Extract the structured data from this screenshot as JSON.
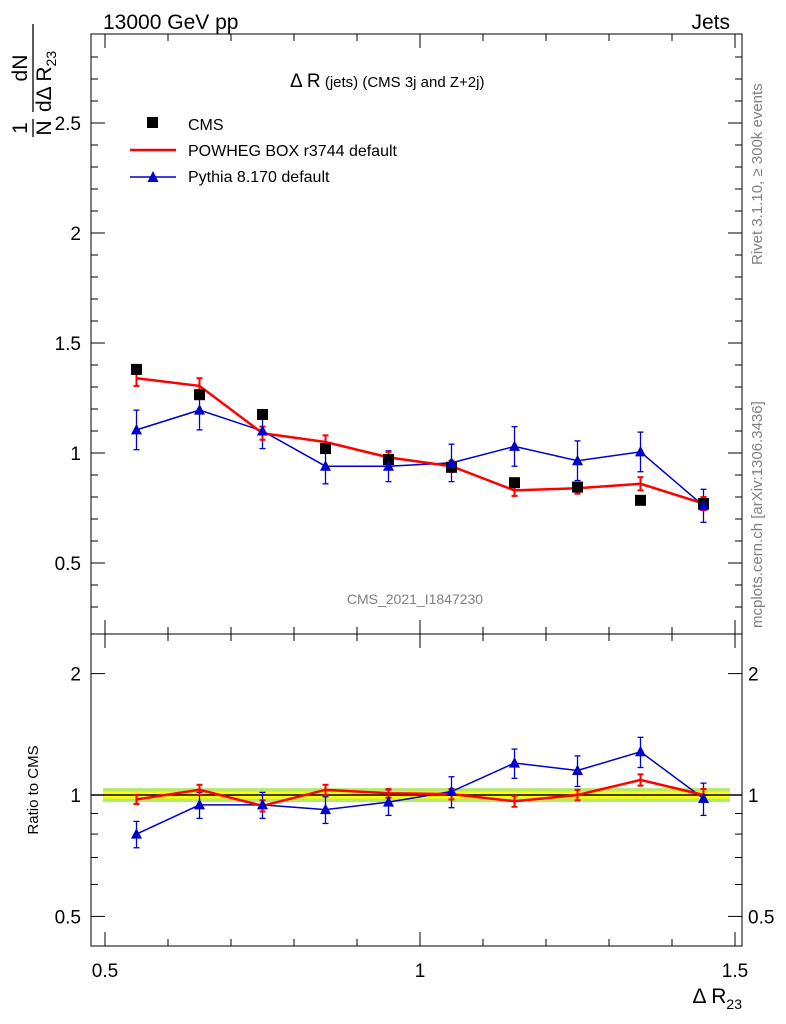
{
  "header": {
    "left": "13000 GeV pp",
    "right": "Jets"
  },
  "plot_title": {
    "main": "Δ R",
    "small": " (jets) ",
    "rest": "(CMS 3j and Z+2j)"
  },
  "side_text": {
    "rivet": "Rivet 3.1.10, ≥ 300k events",
    "mcplots": "mcplots.cern.ch [arXiv:1306.3436]"
  },
  "watermark": "CMS_2021_I1847230",
  "y_label": {
    "frac_num": "1",
    "frac_den": "N",
    "d_num": "dN",
    "d_den": "dΔ R",
    "d_den_sub": "23"
  },
  "x_label": {
    "main": "Δ R",
    "sub": "23"
  },
  "ratio_label": "Ratio to CMS",
  "legend": [
    {
      "name": "CMS",
      "color": "#000000",
      "marker": "square"
    },
    {
      "name": "POWHEG BOX r3744 default",
      "color": "#ff0000",
      "marker": "line"
    },
    {
      "name": "Pythia 8.170 default",
      "color": "#0000cc",
      "marker": "triangle"
    }
  ],
  "chart_data": [
    {
      "type": "scatter",
      "panel": "main",
      "title": "Δ R (jets) (CMS 3j and Z+2j)",
      "xlim": [
        0.5,
        1.5
      ],
      "ylim": [
        0.2,
        2.9
      ],
      "y_ticks": [
        "0.5",
        "1",
        "1.5",
        "2",
        "2.5"
      ],
      "x": [
        0.55,
        0.65,
        0.75,
        0.85,
        0.95,
        1.05,
        1.15,
        1.25,
        1.35,
        1.45
      ],
      "series": [
        {
          "name": "CMS",
          "color": "#000000",
          "values": [
            1.38,
            1.265,
            1.175,
            1.02,
            0.97,
            0.935,
            0.865,
            0.845,
            0.785,
            0.77
          ],
          "errors": [
            0.015,
            0.015,
            0.015,
            0.015,
            0.01,
            0.01,
            0.01,
            0.015,
            0.01,
            0.01
          ]
        },
        {
          "name": "POWHEG BOX r3744 default",
          "color": "#ff0000",
          "values": [
            1.34,
            1.305,
            1.09,
            1.05,
            0.98,
            0.94,
            0.83,
            0.84,
            0.86,
            0.77
          ],
          "errors": [
            0.035,
            0.035,
            0.03,
            0.03,
            0.025,
            0.025,
            0.025,
            0.025,
            0.03,
            0.03
          ]
        },
        {
          "name": "Pythia 8.170 default",
          "color": "#0000cc",
          "values": [
            1.105,
            1.195,
            1.1,
            0.94,
            0.94,
            0.955,
            1.03,
            0.965,
            1.005,
            0.76
          ],
          "errors": [
            0.09,
            0.09,
            0.08,
            0.08,
            0.07,
            0.085,
            0.09,
            0.09,
            0.09,
            0.075
          ]
        }
      ]
    },
    {
      "type": "scatter",
      "panel": "ratio",
      "ylabel": "Ratio to CMS",
      "xlabel": "Δ R23",
      "xlim": [
        0.5,
        1.5
      ],
      "ylim": [
        0.4,
        2.4
      ],
      "log_y": true,
      "x_ticks": [
        "0.5",
        "1",
        "1.5"
      ],
      "y_ticks": [
        "0.5",
        "1",
        "2"
      ],
      "x": [
        0.55,
        0.65,
        0.75,
        0.85,
        0.95,
        1.05,
        1.15,
        1.25,
        1.35,
        1.45
      ],
      "band": {
        "inner": 0.02,
        "outer": 0.04,
        "inner_color": "#ffff00",
        "outer_color": "#b8e86a"
      },
      "series": [
        {
          "name": "POWHEG BOX r3744 default",
          "color": "#ff0000",
          "values": [
            0.975,
            1.03,
            0.94,
            1.03,
            1.01,
            1.005,
            0.965,
            1.0,
            1.09,
            1.0
          ],
          "errors": [
            0.025,
            0.03,
            0.03,
            0.03,
            0.025,
            0.03,
            0.03,
            0.03,
            0.035,
            0.035
          ]
        },
        {
          "name": "Pythia 8.170 default",
          "color": "#0000cc",
          "values": [
            0.8,
            0.945,
            0.945,
            0.92,
            0.96,
            1.02,
            1.2,
            1.15,
            1.28,
            0.98
          ],
          "errors": [
            0.06,
            0.07,
            0.07,
            0.07,
            0.07,
            0.09,
            0.1,
            0.1,
            0.11,
            0.09
          ]
        }
      ]
    }
  ]
}
